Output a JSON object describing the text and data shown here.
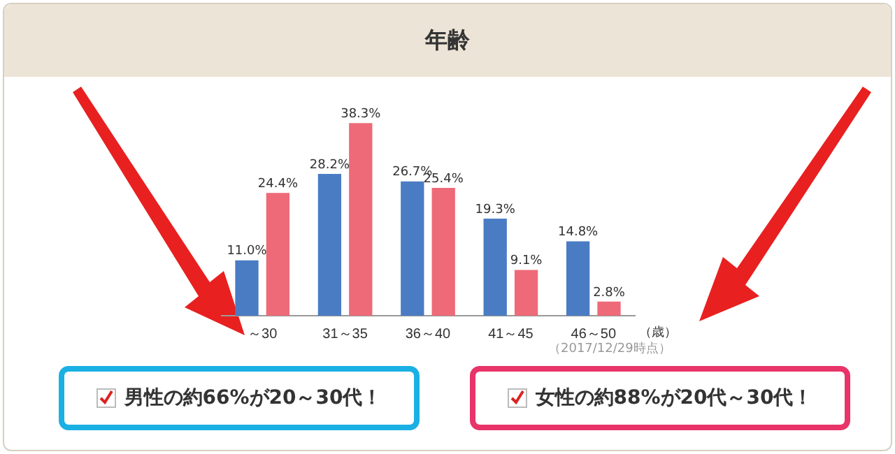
{
  "chart_data": {
    "type": "bar",
    "title": "年齢",
    "xlabel": "（歳）",
    "categories": [
      "～30",
      "31～35",
      "36～40",
      "41～45",
      "46～50"
    ],
    "series": [
      {
        "color": "#4a7cc4",
        "values": [
          11.0,
          28.2,
          26.7,
          19.3,
          14.8
        ],
        "value_labels": [
          "11.0%",
          "28.2%",
          "26.7%",
          "19.3%",
          "14.8%"
        ]
      },
      {
        "color": "#ee6a78",
        "values": [
          24.4,
          38.3,
          25.4,
          9.1,
          2.8
        ],
        "value_labels": [
          "24.4%",
          "38.3%",
          "25.4%",
          "9.1%",
          "2.8%"
        ]
      }
    ],
    "annotations": [
      "（2017/12/29時点）",
      "男性の約66%が20～30代！",
      "女性の約88%が20代～30代！"
    ],
    "grid": false,
    "legend": false
  }
}
